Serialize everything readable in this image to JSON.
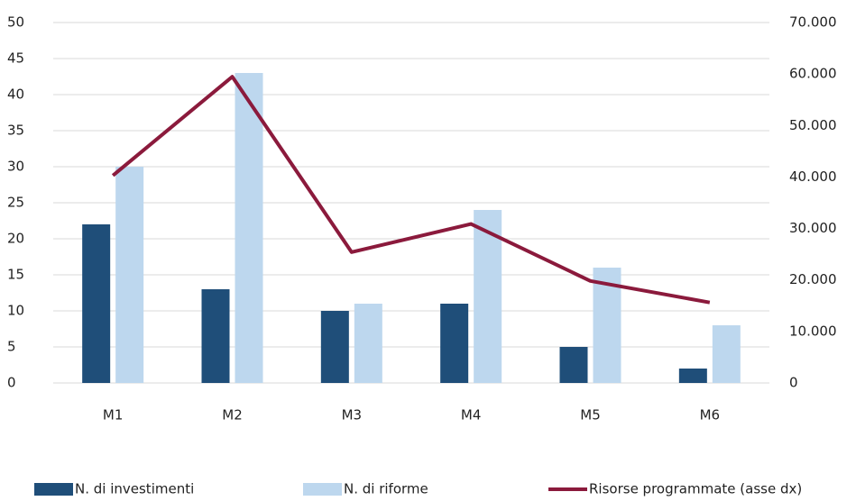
{
  "chart_data": {
    "type": "bar_line",
    "categories": [
      "M1",
      "M2",
      "M3",
      "M4",
      "M5",
      "M6"
    ],
    "series": [
      {
        "name": "N. di investimenti",
        "color": "#1f4e79",
        "type": "bar",
        "values": [
          22,
          13,
          10,
          11,
          5,
          2
        ]
      },
      {
        "name": "N. di riforme",
        "color": "#bdd7ee",
        "type": "bar",
        "values": [
          30,
          43,
          11,
          24,
          16,
          8
        ]
      },
      {
        "name": "Risorse programmate (asse dx)",
        "color": "#8b1a3c",
        "type": "line",
        "axis": "y2",
        "values": [
          40290,
          59470,
          25400,
          30880,
          19810,
          15630
        ]
      }
    ],
    "ylim": [
      0,
      50
    ],
    "yticks": [
      0,
      5,
      10,
      15,
      20,
      25,
      30,
      35,
      40,
      45,
      50
    ],
    "y2lim": [
      0,
      70000
    ],
    "y2ticks": [
      0,
      {
        "value": 10000,
        "label": "10.000"
      },
      {
        "value": 20000,
        "label": "20.000"
      },
      {
        "value": 30000,
        "label": "30.000"
      },
      {
        "value": 40000,
        "label": "40.000"
      },
      {
        "value": 50000,
        "label": "50.000"
      },
      {
        "value": 60000,
        "label": "60.000"
      },
      {
        "value": 70000,
        "label": "70.000"
      }
    ],
    "grid": true,
    "legend": "bottom"
  }
}
